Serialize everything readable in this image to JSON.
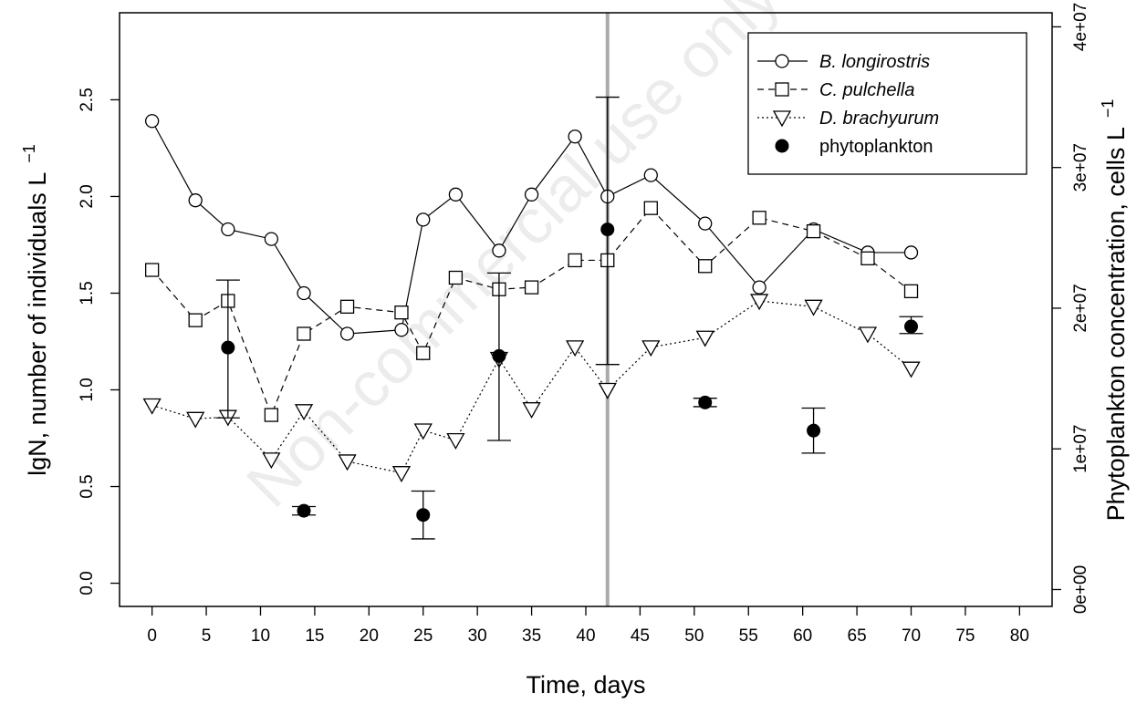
{
  "chart_data": {
    "type": "line",
    "xlabel": "Time, days",
    "ylabel": "lgN, number of individuals L",
    "ylabel_sup": "−1",
    "y2label": "Phytoplankton concentration, cells L",
    "y2label_sup": "−1",
    "watermark": "Non-commercial use only",
    "xlim": [
      -3,
      83
    ],
    "ylim": [
      -0.12,
      2.95
    ],
    "y2lim": [
      -1200000.0,
      41000000.0
    ],
    "x_ticks": [
      0,
      5,
      10,
      15,
      20,
      25,
      30,
      35,
      40,
      45,
      50,
      55,
      60,
      65,
      70,
      75,
      80
    ],
    "y_ticks": [
      0.0,
      0.5,
      1.0,
      1.5,
      2.0,
      2.5
    ],
    "y_tick_labels": [
      "0.0",
      "0.5",
      "1.0",
      "1.5",
      "2.0",
      "2.5"
    ],
    "y2_ticks": [
      0,
      10000000,
      20000000,
      30000000,
      40000000
    ],
    "y2_tick_labels": [
      "0e+00",
      "1e+07",
      "2e+07",
      "3e+07",
      "4e+07"
    ],
    "vline_x": 42,
    "vline_color": "#aaaaaa",
    "legend_position": "top-right",
    "series": [
      {
        "name": "B. longirostris",
        "marker": "circle",
        "line": "solid",
        "x": [
          0,
          4,
          7,
          11,
          14,
          18,
          23,
          25,
          28,
          32,
          35,
          39,
          42,
          46,
          51,
          56,
          61,
          66,
          70
        ],
        "y": [
          2.39,
          1.98,
          1.83,
          1.78,
          1.5,
          1.29,
          1.31,
          1.88,
          2.01,
          1.72,
          2.01,
          2.31,
          2.0,
          2.11,
          1.86,
          1.53,
          1.83,
          1.71,
          1.71
        ]
      },
      {
        "name": "C. pulchella",
        "marker": "square",
        "line": "dashed",
        "x": [
          0,
          4,
          7,
          11,
          14,
          18,
          23,
          25,
          28,
          32,
          35,
          39,
          42,
          46,
          51,
          56,
          61,
          66,
          70
        ],
        "y": [
          1.62,
          1.36,
          1.46,
          0.87,
          1.29,
          1.43,
          1.4,
          1.19,
          1.58,
          1.52,
          1.53,
          1.67,
          1.67,
          1.94,
          1.64,
          1.89,
          1.82,
          1.68,
          1.51
        ]
      },
      {
        "name": "D. brachyurum",
        "marker": "triangle-down",
        "line": "dotted",
        "x": [
          0,
          4,
          7,
          11,
          14,
          18,
          23,
          25,
          28,
          32,
          35,
          39,
          42,
          46,
          51,
          56,
          61,
          66,
          70
        ],
        "y": [
          0.92,
          0.85,
          0.86,
          0.64,
          0.89,
          0.63,
          0.57,
          0.79,
          0.74,
          1.16,
          0.9,
          1.22,
          1.0,
          1.22,
          1.27,
          1.46,
          1.43,
          1.29,
          1.11
        ]
      }
    ],
    "phytoplankton": {
      "name": "phytoplankton",
      "marker": "filled-circle",
      "axis": "right",
      "points": [
        {
          "x": 7,
          "y": 17200000,
          "lo": 12200000,
          "hi": 22000000
        },
        {
          "x": 14,
          "y": 5600000,
          "lo": 5300000,
          "hi": 5900000
        },
        {
          "x": 25,
          "y": 5300000,
          "lo": 3600000,
          "hi": 7000000
        },
        {
          "x": 32,
          "y": 16600000,
          "lo": 10600000,
          "hi": 22500000
        },
        {
          "x": 42,
          "y": 25600000,
          "lo": 16000000,
          "hi": 35000000
        },
        {
          "x": 51,
          "y": 13300000,
          "lo": 13000000,
          "hi": 13600000
        },
        {
          "x": 61,
          "y": 11300000,
          "lo": 9700000,
          "hi": 12900000
        },
        {
          "x": 70,
          "y": 18700000,
          "lo": 18200000,
          "hi": 19400000
        }
      ]
    }
  }
}
